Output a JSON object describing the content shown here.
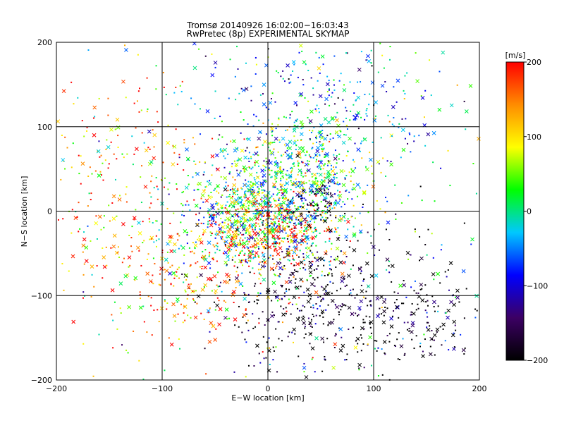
{
  "chart_data": {
    "type": "scatter",
    "title_line1": "Tromsø 20140926 16:02:00−16:03:43",
    "title_line2": "RwPretec (8p) EXPERIMENTAL SKYMAP",
    "xlabel": "E−W location [km]",
    "ylabel": "N−S location [km]",
    "xlim": [
      -200,
      200
    ],
    "ylim": [
      -200,
      200
    ],
    "grid": true,
    "xticks": [
      -200,
      -100,
      0,
      100,
      200
    ],
    "yticks": [
      -200,
      -100,
      0,
      100,
      200
    ],
    "x_tick_labels": [
      "−200",
      "−100",
      "0",
      "100",
      "200"
    ],
    "y_tick_labels": [
      "−200",
      "−100",
      "0",
      "100",
      "200"
    ],
    "markers": [
      "dot",
      "cross"
    ],
    "colorbar": {
      "label": "[m/s]",
      "min": -200,
      "max": 200,
      "ticks": [
        200,
        100,
        0,
        -100,
        -200
      ],
      "tick_labels": [
        "200",
        "100",
        "0",
        "−100",
        "−200"
      ],
      "colors": [
        "#000000",
        "#3c0064",
        "#0000ff",
        "#00c8ff",
        "#00ff00",
        "#ffff00",
        "#ff8c00",
        "#ff0000"
      ]
    },
    "clusters": [
      {
        "x": 0,
        "y": 0,
        "sx": 40,
        "sy": 35,
        "n": 900,
        "v": 0
      },
      {
        "x": 0,
        "y": -25,
        "sx": 30,
        "sy": 25,
        "n": 380,
        "v": 160
      },
      {
        "x": 30,
        "y": 55,
        "sx": 35,
        "sy": 25,
        "n": 320,
        "v": 20
      },
      {
        "x": 45,
        "y": 8,
        "sx": 15,
        "sy": 12,
        "n": 70,
        "v": -170
      },
      {
        "x": 40,
        "y": -100,
        "sx": 45,
        "sy": 45,
        "n": 380,
        "v": -200
      },
      {
        "x": 130,
        "y": -130,
        "sx": 40,
        "sy": 35,
        "n": 190,
        "v": -200
      },
      {
        "x": 60,
        "y": 120,
        "sx": 55,
        "sy": 40,
        "n": 300,
        "v": -40
      },
      {
        "x": -80,
        "y": -80,
        "sx": 45,
        "sy": 45,
        "n": 260,
        "v": 150
      },
      {
        "x": -140,
        "y": 40,
        "sx": 45,
        "sy": 60,
        "n": 200,
        "v": 140
      },
      {
        "x": 0,
        "y": 0,
        "sx": 210,
        "sy": 210,
        "n": 520,
        "v": 0
      }
    ]
  }
}
